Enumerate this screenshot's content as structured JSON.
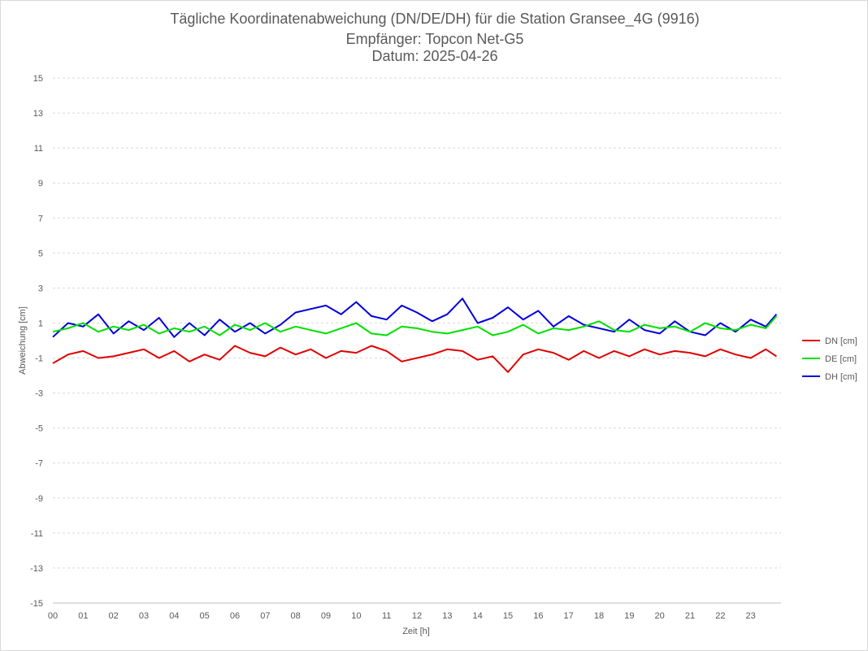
{
  "chart_data": {
    "type": "line",
    "title_lines": [
      "Tägliche Koordinatenabweichung (DN/DE/DH) für die Station Gransee_4G (9916)",
      "Empfänger: Topcon Net-G5",
      "Datum: 2025-04-26"
    ],
    "xlabel": "Zeit [h]",
    "ylabel": "Abweichung [cm]",
    "xlim": [
      0,
      24
    ],
    "ylim": [
      -15,
      15
    ],
    "x_tick_labels": [
      "00",
      "01",
      "02",
      "03",
      "04",
      "05",
      "06",
      "07",
      "08",
      "09",
      "10",
      "11",
      "12",
      "13",
      "14",
      "15",
      "16",
      "17",
      "18",
      "19",
      "20",
      "21",
      "22",
      "23"
    ],
    "y_ticks": [
      15,
      13,
      11,
      9,
      7,
      5,
      3,
      1,
      -1,
      -3,
      -5,
      -7,
      -9,
      -11,
      -13,
      -15
    ],
    "grid": "horizontal dashed",
    "legend_position": "right",
    "x_sample_hours": [
      0.0,
      0.5,
      1.0,
      1.5,
      2.0,
      2.5,
      3.0,
      3.5,
      4.0,
      4.5,
      5.0,
      5.5,
      6.0,
      6.5,
      7.0,
      7.5,
      8.0,
      8.5,
      9.0,
      9.5,
      10.0,
      10.5,
      11.0,
      11.5,
      12.0,
      12.5,
      13.0,
      13.5,
      14.0,
      14.5,
      15.0,
      15.5,
      16.0,
      16.5,
      17.0,
      17.5,
      18.0,
      18.5,
      19.0,
      19.5,
      20.0,
      20.5,
      21.0,
      21.5,
      22.0,
      22.5,
      23.0,
      23.5,
      23.85
    ],
    "series": [
      {
        "name": "DN [cm]",
        "color": "#e00000",
        "values": [
          -1.3,
          -0.8,
          -0.6,
          -1.0,
          -0.9,
          -0.7,
          -0.5,
          -1.0,
          -0.6,
          -1.2,
          -0.8,
          -1.1,
          -0.3,
          -0.7,
          -0.9,
          -0.4,
          -0.8,
          -0.5,
          -1.0,
          -0.6,
          -0.7,
          -0.3,
          -0.6,
          -1.2,
          -1.0,
          -0.8,
          -0.5,
          -0.6,
          -1.1,
          -0.9,
          -1.8,
          -0.8,
          -0.5,
          -0.7,
          -1.1,
          -0.6,
          -1.0,
          -0.6,
          -0.9,
          -0.5,
          -0.8,
          -0.6,
          -0.7,
          -0.9,
          -0.5,
          -0.8,
          -1.0,
          -0.5,
          -0.9
        ]
      },
      {
        "name": "DE [cm]",
        "color": "#00e000",
        "values": [
          0.5,
          0.7,
          1.0,
          0.5,
          0.8,
          0.6,
          0.9,
          0.4,
          0.7,
          0.5,
          0.8,
          0.3,
          0.9,
          0.6,
          1.0,
          0.5,
          0.8,
          0.6,
          0.4,
          0.7,
          1.0,
          0.4,
          0.3,
          0.8,
          0.7,
          0.5,
          0.4,
          0.6,
          0.8,
          0.3,
          0.5,
          0.9,
          0.4,
          0.7,
          0.6,
          0.8,
          1.1,
          0.6,
          0.5,
          0.9,
          0.7,
          0.8,
          0.5,
          1.0,
          0.7,
          0.6,
          0.9,
          0.7,
          1.4
        ]
      },
      {
        "name": "DH [cm]",
        "color": "#0000dd",
        "values": [
          0.2,
          1.0,
          0.8,
          1.5,
          0.4,
          1.1,
          0.6,
          1.3,
          0.2,
          1.0,
          0.3,
          1.2,
          0.5,
          1.0,
          0.4,
          0.9,
          1.6,
          1.8,
          2.0,
          1.5,
          2.2,
          1.4,
          1.2,
          2.0,
          1.6,
          1.1,
          1.5,
          2.4,
          1.0,
          1.3,
          1.9,
          1.2,
          1.7,
          0.8,
          1.4,
          0.9,
          0.7,
          0.5,
          1.2,
          0.6,
          0.4,
          1.1,
          0.5,
          0.3,
          1.0,
          0.5,
          1.2,
          0.8,
          1.5
        ]
      }
    ]
  }
}
